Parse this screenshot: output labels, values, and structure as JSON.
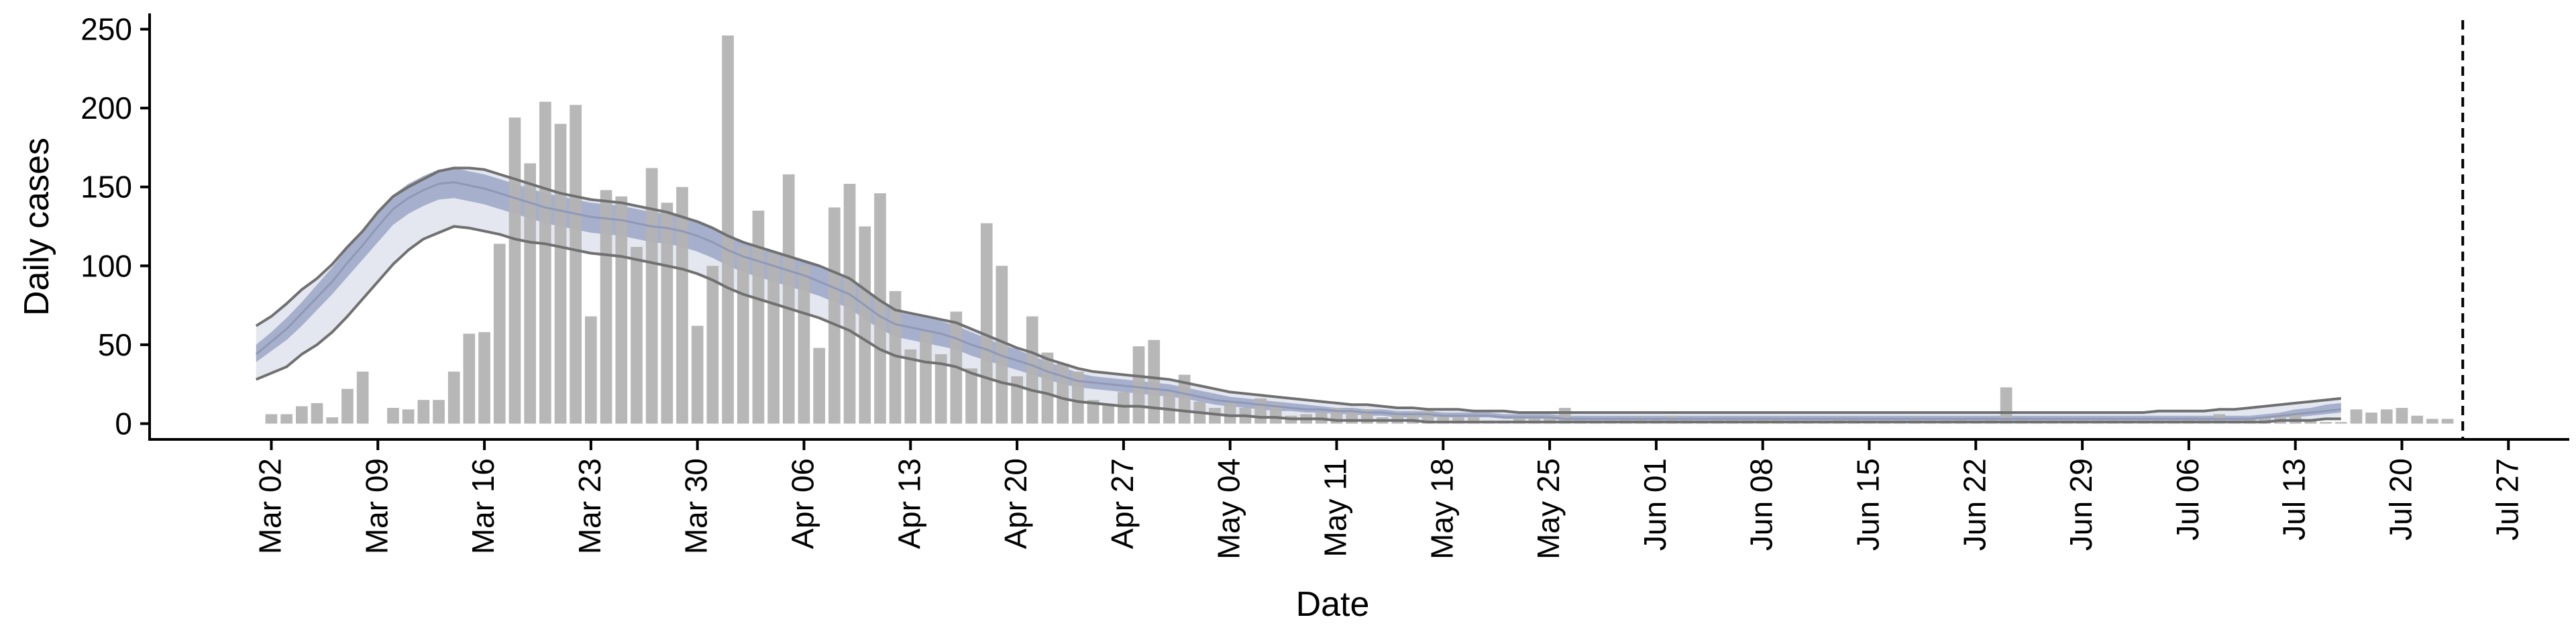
{
  "chart_data": {
    "type": "bar",
    "xlabel": "Date",
    "ylabel": "Daily cases",
    "x_axis": "date",
    "ylim": [
      -10,
      260
    ],
    "xlim": [
      "2020-02-23",
      "2020-07-31"
    ],
    "grid": false,
    "legend": "none",
    "y_ticks": [
      0,
      50,
      100,
      150,
      200,
      250
    ],
    "x_ticks": [
      {
        "date": "2020-03-02",
        "label": "Mar 02"
      },
      {
        "date": "2020-03-09",
        "label": "Mar 09"
      },
      {
        "date": "2020-03-16",
        "label": "Mar 16"
      },
      {
        "date": "2020-03-23",
        "label": "Mar 23"
      },
      {
        "date": "2020-03-30",
        "label": "Mar 30"
      },
      {
        "date": "2020-04-06",
        "label": "Apr 06"
      },
      {
        "date": "2020-04-13",
        "label": "Apr 13"
      },
      {
        "date": "2020-04-20",
        "label": "Apr 20"
      },
      {
        "date": "2020-04-27",
        "label": "Apr 27"
      },
      {
        "date": "2020-05-04",
        "label": "May 04"
      },
      {
        "date": "2020-05-11",
        "label": "May 11"
      },
      {
        "date": "2020-05-18",
        "label": "May 18"
      },
      {
        "date": "2020-05-25",
        "label": "May 25"
      },
      {
        "date": "2020-06-01",
        "label": "Jun 01"
      },
      {
        "date": "2020-06-08",
        "label": "Jun 08"
      },
      {
        "date": "2020-06-15",
        "label": "Jun 15"
      },
      {
        "date": "2020-06-22",
        "label": "Jun 22"
      },
      {
        "date": "2020-06-29",
        "label": "Jun 29"
      },
      {
        "date": "2020-07-06",
        "label": "Jul 06"
      },
      {
        "date": "2020-07-13",
        "label": "Jul 13"
      },
      {
        "date": "2020-07-20",
        "label": "Jul 20"
      },
      {
        "date": "2020-07-27",
        "label": "Jul 27"
      }
    ],
    "bars": {
      "start_date": "2020-03-02",
      "values": [
        6,
        6,
        11,
        13,
        4,
        22,
        33,
        0,
        10,
        9,
        15,
        15,
        33,
        57,
        58,
        114,
        194,
        165,
        204,
        190,
        202,
        68,
        148,
        144,
        112,
        162,
        140,
        150,
        62,
        100,
        246,
        112,
        135,
        108,
        158,
        100,
        48,
        137,
        152,
        125,
        146,
        84,
        47,
        58,
        44,
        71,
        35,
        127,
        100,
        30,
        68,
        45,
        38,
        33,
        15,
        12,
        20,
        49,
        53,
        20,
        31,
        14,
        10,
        13,
        10,
        16,
        13,
        5,
        6,
        7,
        10,
        9,
        9,
        4,
        7,
        7,
        8,
        6,
        4,
        4,
        2,
        2,
        4,
        4,
        5,
        10,
        3,
        2,
        2,
        3,
        4,
        3,
        5,
        3,
        2,
        3,
        3,
        3,
        3,
        4,
        2,
        2,
        2,
        3,
        3,
        2,
        2,
        2,
        4,
        2,
        2,
        3,
        2,
        3,
        23,
        3,
        2,
        2,
        2,
        2,
        2,
        2,
        2,
        2,
        2,
        2,
        3,
        4,
        6,
        2,
        3,
        4,
        6,
        7,
        2,
        1,
        1,
        9,
        7,
        9,
        10,
        5,
        3,
        3
      ]
    },
    "forecast": {
      "start_date": "2020-03-01",
      "median": [
        44,
        52,
        60,
        70,
        80,
        90,
        102,
        113,
        125,
        136,
        143,
        148,
        152,
        153,
        151,
        149,
        146,
        143,
        140,
        137,
        135,
        133,
        131,
        130,
        129,
        127,
        125,
        124,
        122,
        119,
        115,
        110,
        106,
        103,
        100,
        97,
        94,
        90,
        86,
        82,
        75,
        68,
        63,
        61,
        59,
        57,
        54,
        50,
        47,
        43,
        40,
        37,
        33,
        30,
        27,
        26,
        25,
        24,
        23,
        22,
        21,
        19,
        17,
        15,
        14,
        13,
        12,
        11,
        10,
        9,
        9,
        8,
        8,
        7,
        7,
        6,
        6,
        6,
        5,
        5,
        5,
        5,
        4,
        4,
        4,
        4,
        3,
        3,
        3,
        3,
        3,
        3,
        3,
        3,
        3,
        3,
        3,
        3,
        3,
        3,
        3,
        3,
        3,
        3,
        3,
        3,
        3,
        3,
        3,
        3,
        3,
        3,
        3,
        3,
        3,
        3,
        3,
        3,
        3,
        3,
        3,
        3,
        3,
        3,
        3,
        3,
        3,
        3,
        3,
        3,
        3,
        3,
        4,
        5,
        6,
        7,
        8,
        9
      ],
      "inner_low": [
        39,
        46,
        53,
        62,
        72,
        82,
        93,
        104,
        115,
        126,
        133,
        138,
        142,
        143,
        141,
        139,
        136,
        133,
        130,
        127,
        125,
        123,
        121,
        120,
        119,
        117,
        115,
        114,
        112,
        109,
        105,
        100,
        96,
        93,
        90,
        87,
        84,
        81,
        77,
        73,
        66,
        60,
        55,
        53,
        51,
        49,
        47,
        43,
        40,
        37,
        34,
        31,
        28,
        25,
        23,
        22,
        21,
        20,
        19,
        18,
        17,
        16,
        14,
        12,
        11,
        10,
        9,
        8,
        8,
        7,
        7,
        6,
        6,
        5,
        5,
        4,
        4,
        4,
        4,
        4,
        4,
        4,
        3,
        3,
        3,
        3,
        2,
        2,
        2,
        2,
        2,
        2,
        2,
        2,
        2,
        2,
        2,
        2,
        2,
        2,
        2,
        2,
        2,
        2,
        2,
        2,
        2,
        2,
        2,
        2,
        2,
        2,
        2,
        2,
        2,
        2,
        2,
        2,
        2,
        2,
        2,
        2,
        2,
        2,
        2,
        2,
        2,
        2,
        2,
        2,
        2,
        2,
        3,
        4,
        4,
        5,
        6,
        7
      ],
      "inner_high": [
        50,
        58,
        67,
        77,
        88,
        99,
        111,
        122,
        134,
        145,
        152,
        157,
        161,
        162,
        160,
        158,
        155,
        152,
        149,
        146,
        144,
        142,
        140,
        139,
        138,
        136,
        134,
        133,
        131,
        128,
        124,
        119,
        115,
        112,
        109,
        106,
        103,
        99,
        95,
        91,
        84,
        77,
        71,
        69,
        67,
        65,
        62,
        58,
        54,
        50,
        47,
        43,
        39,
        36,
        32,
        30,
        29,
        28,
        27,
        26,
        25,
        23,
        21,
        19,
        17,
        16,
        15,
        14,
        13,
        12,
        11,
        10,
        10,
        9,
        9,
        8,
        8,
        8,
        7,
        7,
        7,
        7,
        6,
        6,
        6,
        6,
        5,
        5,
        5,
        5,
        5,
        5,
        5,
        5,
        5,
        5,
        5,
        5,
        5,
        5,
        5,
        5,
        5,
        5,
        5,
        5,
        5,
        5,
        5,
        5,
        5,
        5,
        5,
        5,
        5,
        5,
        5,
        5,
        5,
        5,
        5,
        5,
        5,
        5,
        5,
        5,
        5,
        5,
        5,
        5,
        5,
        5,
        6,
        7,
        9,
        10,
        12,
        13
      ],
      "outer_low": [
        28,
        32,
        36,
        44,
        50,
        58,
        68,
        79,
        90,
        101,
        110,
        117,
        121,
        125,
        124,
        122,
        120,
        117,
        115,
        114,
        112,
        110,
        108,
        107,
        106,
        104,
        102,
        100,
        98,
        95,
        91,
        86,
        82,
        79,
        76,
        73,
        70,
        67,
        63,
        59,
        53,
        47,
        43,
        41,
        39,
        38,
        36,
        32,
        29,
        26,
        24,
        21,
        19,
        16,
        14,
        13,
        12,
        11,
        11,
        10,
        9,
        8,
        7,
        6,
        5,
        5,
        4,
        4,
        3,
        3,
        3,
        2,
        2,
        2,
        2,
        2,
        2,
        1,
        1,
        1,
        1,
        1,
        1,
        1,
        1,
        1,
        1,
        1,
        1,
        1,
        1,
        1,
        1,
        1,
        1,
        1,
        1,
        1,
        1,
        1,
        1,
        1,
        1,
        1,
        1,
        1,
        1,
        1,
        1,
        1,
        1,
        1,
        1,
        1,
        1,
        1,
        1,
        1,
        1,
        1,
        1,
        1,
        1,
        1,
        1,
        1,
        1,
        1,
        1,
        1,
        1,
        1,
        1,
        2,
        2,
        2,
        3,
        3
      ],
      "outer_high": [
        62,
        68,
        76,
        85,
        92,
        101,
        112,
        122,
        134,
        144,
        150,
        155,
        160,
        162,
        162,
        161,
        158,
        155,
        152,
        149,
        146,
        144,
        142,
        141,
        140,
        138,
        136,
        134,
        131,
        128,
        124,
        119,
        115,
        112,
        109,
        106,
        103,
        100,
        96,
        92,
        85,
        78,
        72,
        70,
        68,
        66,
        64,
        60,
        56,
        52,
        48,
        45,
        41,
        38,
        35,
        33,
        32,
        31,
        30,
        29,
        28,
        26,
        24,
        22,
        20,
        19,
        18,
        17,
        16,
        15,
        14,
        13,
        12,
        12,
        11,
        10,
        10,
        9,
        9,
        9,
        8,
        8,
        8,
        7,
        7,
        7,
        7,
        7,
        7,
        7,
        7,
        7,
        7,
        7,
        7,
        7,
        7,
        7,
        7,
        7,
        7,
        7,
        7,
        7,
        7,
        7,
        7,
        7,
        7,
        7,
        7,
        7,
        7,
        7,
        7,
        7,
        7,
        7,
        7,
        7,
        7,
        7,
        7,
        7,
        7,
        8,
        8,
        8,
        8,
        9,
        9,
        10,
        11,
        12,
        13,
        14,
        15,
        16
      ]
    },
    "reference_line_date": "2020-07-24",
    "colors": {
      "bars": "#b3b3b3",
      "inner_band": "#a6b0cc",
      "outer_band": "#e4e7f0",
      "median": "#8f99b6",
      "outer_lines": "#707070",
      "axis": "#000000"
    }
  }
}
